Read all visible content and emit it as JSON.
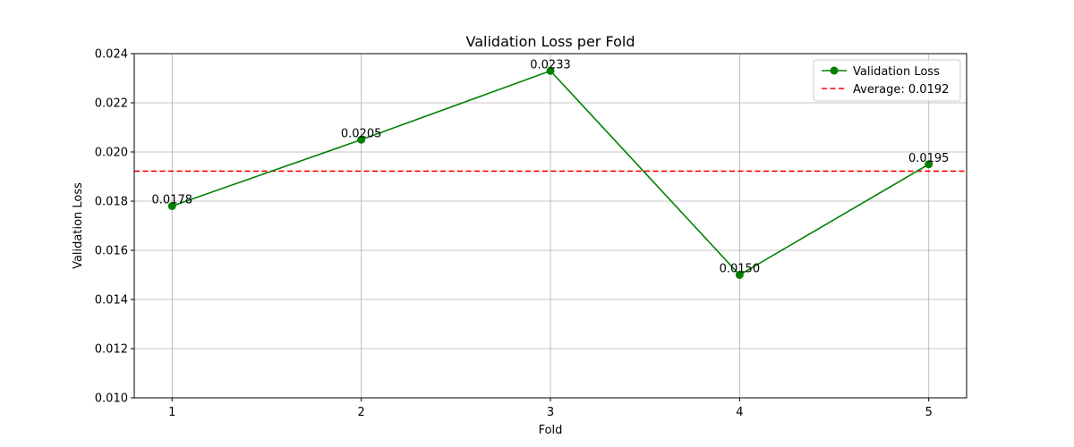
{
  "chart_data": {
    "type": "line",
    "title": "Validation Loss per Fold",
    "xlabel": "Fold",
    "ylabel": "Validation Loss",
    "x": [
      1,
      2,
      3,
      4,
      5
    ],
    "x_tick_labels": [
      "1",
      "2",
      "3",
      "4",
      "5"
    ],
    "ylim": [
      0.01,
      0.024
    ],
    "y_ticks": [
      0.01,
      0.012,
      0.014,
      0.016,
      0.018,
      0.02,
      0.022,
      0.024
    ],
    "y_tick_labels": [
      "0.010",
      "0.012",
      "0.014",
      "0.016",
      "0.018",
      "0.020",
      "0.022",
      "0.024"
    ],
    "grid": true,
    "legend_position": "top-right",
    "series": [
      {
        "name": "Validation Loss",
        "color": "#008000",
        "marker": "circle",
        "values": [
          0.0178,
          0.0205,
          0.0233,
          0.015,
          0.0195
        ],
        "data_labels": [
          "0.0178",
          "0.0205",
          "0.0233",
          "0.0150",
          "0.0195"
        ]
      }
    ],
    "reference_lines": [
      {
        "name": "Average: 0.0192",
        "value": 0.01922,
        "color": "#ff0000",
        "style": "dashed"
      }
    ]
  }
}
